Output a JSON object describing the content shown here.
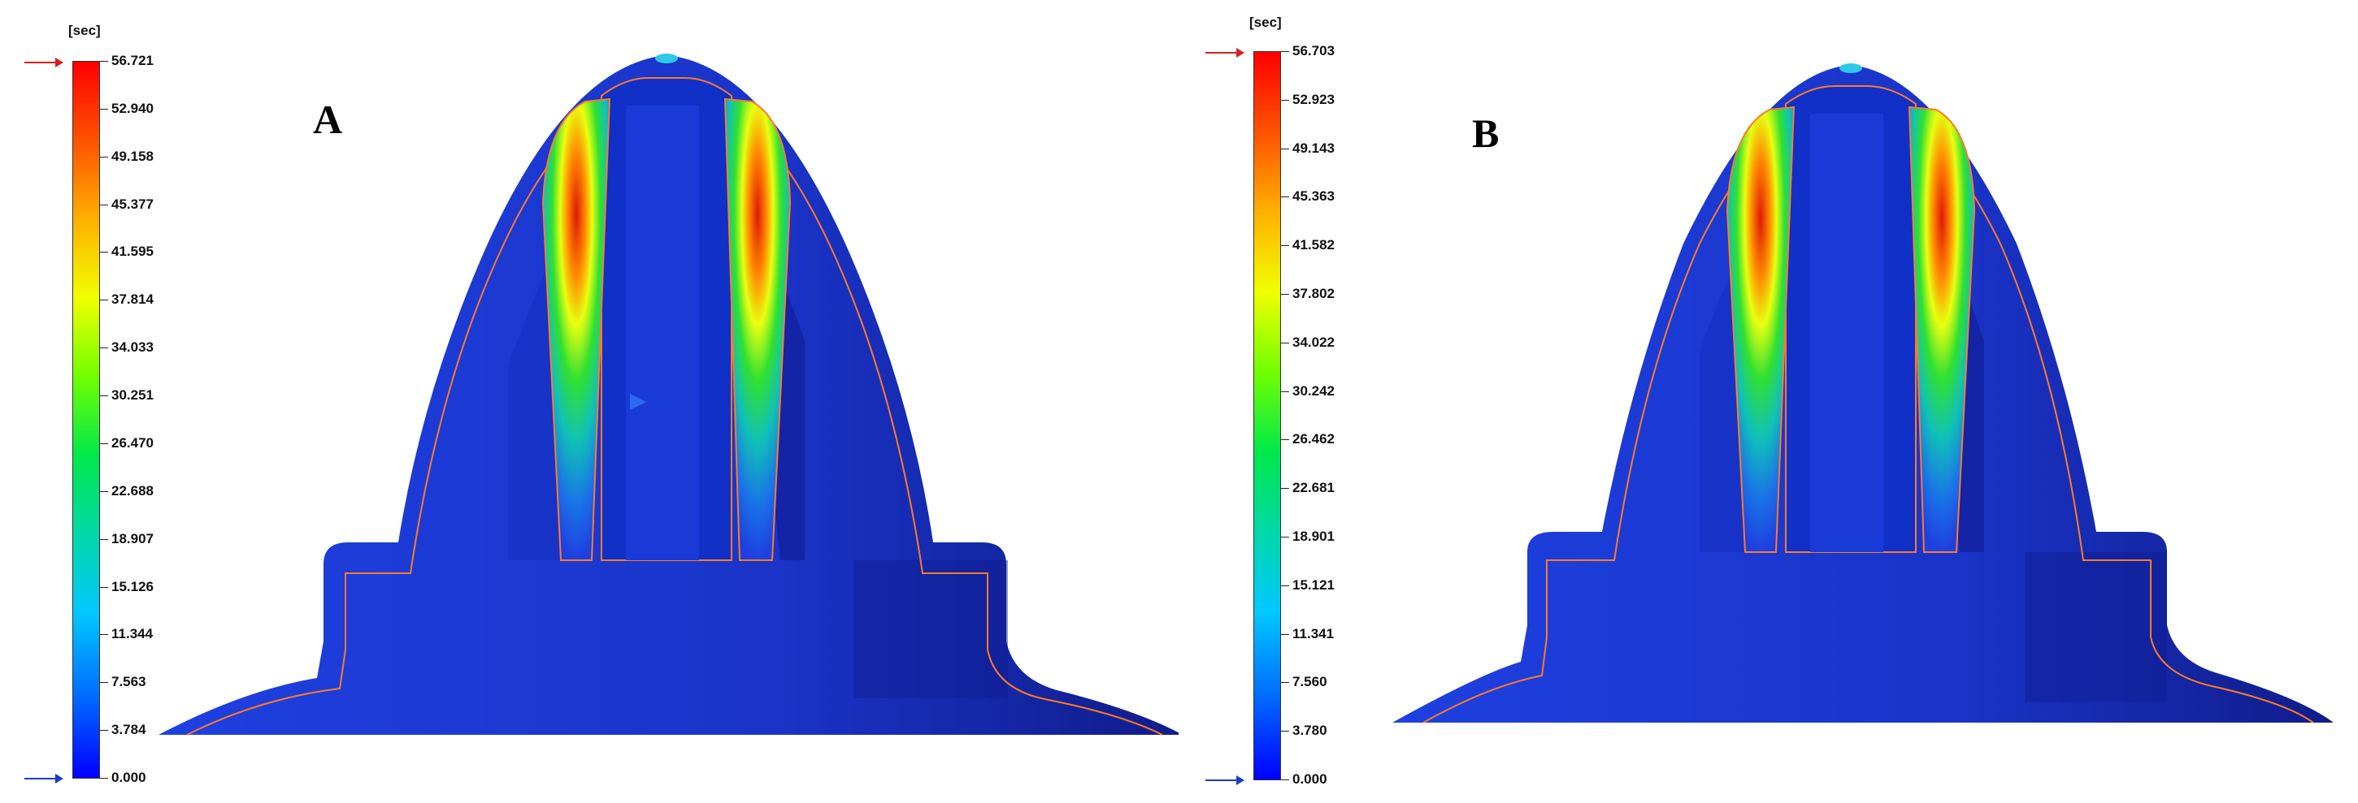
{
  "panels": [
    {
      "letter": "A",
      "unit": "[sec]",
      "ticks": [
        "56.721",
        "52.940",
        "49.158",
        "45.377",
        "41.595",
        "37.814",
        "34.033",
        "30.251",
        "26.470",
        "22.688",
        "18.907",
        "15.126",
        "11.344",
        "7.563",
        "3.784",
        "0.000"
      ],
      "max_arrow_color": "#d62020",
      "min_arrow_color": "#1a3cc8"
    },
    {
      "letter": "B",
      "unit": "[sec]",
      "ticks": [
        "56.703",
        "52.923",
        "49.143",
        "45.363",
        "41.582",
        "37.802",
        "34.022",
        "30.242",
        "26.462",
        "22.681",
        "18.901",
        "15.121",
        "11.341",
        "7.560",
        "3.780",
        "0.000"
      ],
      "max_arrow_color": "#d62020",
      "min_arrow_color": "#1a3cc8"
    }
  ],
  "colors": {
    "part_blue": "#1f3fe0",
    "part_dark_blue": "#1526a8",
    "core_blue": "#1030c8",
    "outline_orange": "#ff7a2a",
    "hot_red": "#e82a10"
  }
}
